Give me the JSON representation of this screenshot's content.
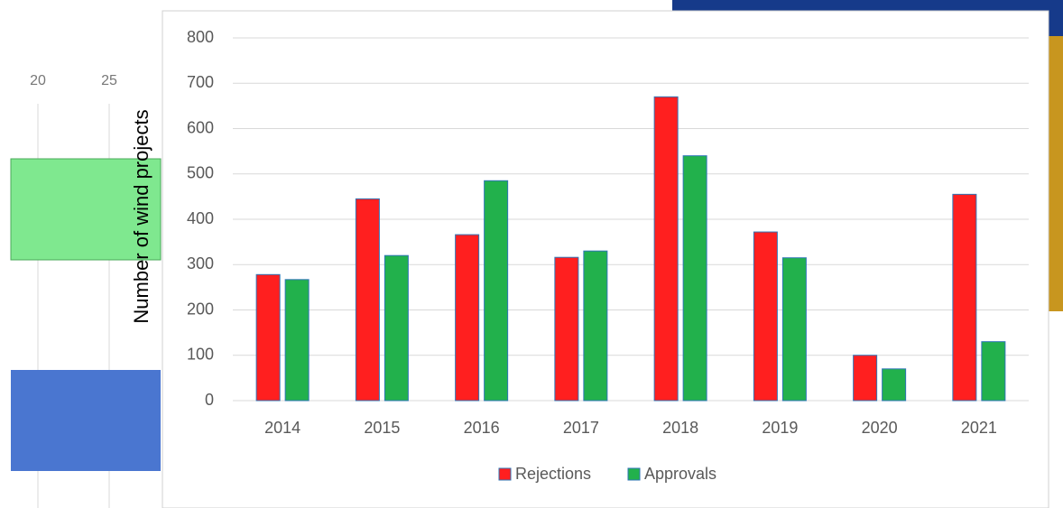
{
  "chart_data": {
    "type": "bar",
    "ylabel": "Number of wind projects",
    "categories": [
      "2014",
      "2015",
      "2016",
      "2017",
      "2018",
      "2019",
      "2020",
      "2021"
    ],
    "series": [
      {
        "name": "Rejections",
        "color": "#ff1f1f",
        "values": [
          278,
          445,
          366,
          316,
          670,
          372,
          100,
          455
        ]
      },
      {
        "name": "Approvals",
        "color": "#22b14c",
        "values": [
          267,
          320,
          485,
          330,
          540,
          315,
          70,
          130
        ]
      }
    ],
    "ylim": [
      0,
      800
    ],
    "yticks": [
      0,
      100,
      200,
      300,
      400,
      500,
      600,
      700,
      800
    ],
    "grid": true,
    "legend": "bottom"
  },
  "background_panel": {
    "xticks": [
      20,
      25
    ]
  }
}
